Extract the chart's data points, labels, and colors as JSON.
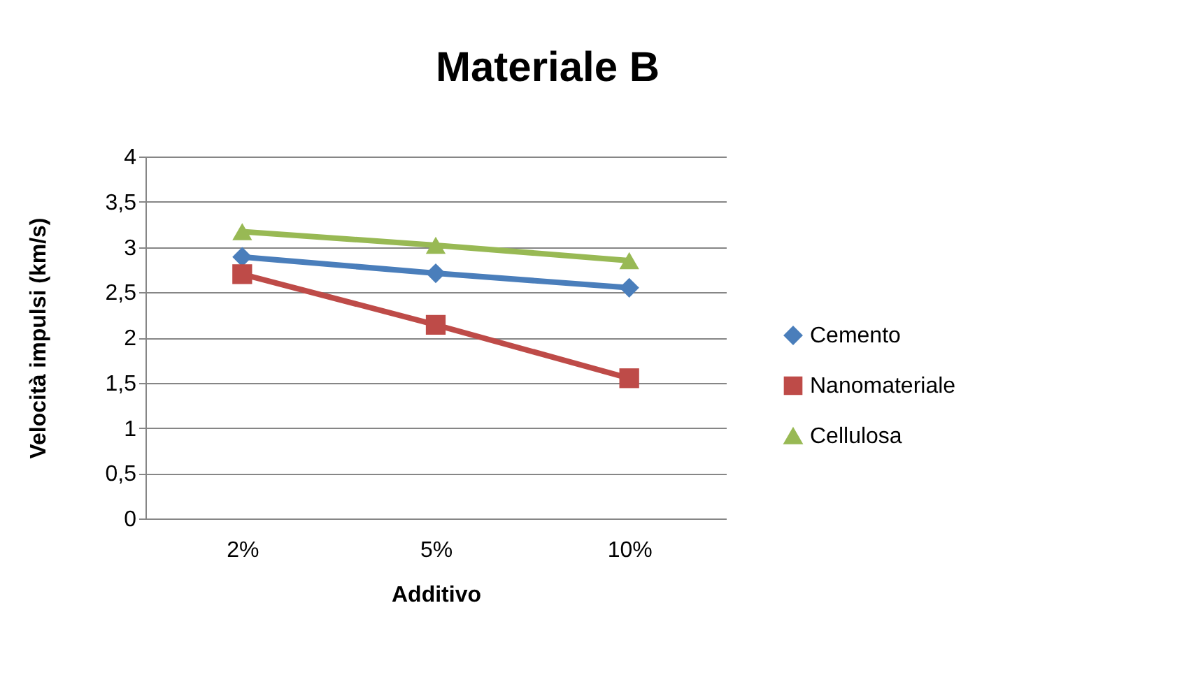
{
  "chart_data": {
    "type": "line",
    "title": "Materiale B",
    "xlabel": "Additivo",
    "ylabel": "Velocità impulsi (km/s)",
    "categories": [
      "2%",
      "5%",
      "10%"
    ],
    "series": [
      {
        "name": "Cemento",
        "color": "#4a7ebb",
        "marker": "diamond",
        "values": [
          2.89,
          2.71,
          2.55
        ]
      },
      {
        "name": "Nanomateriale",
        "color": "#be4b48",
        "marker": "square",
        "values": [
          2.7,
          2.14,
          1.55
        ]
      },
      {
        "name": "Cellulosa",
        "color": "#98b954",
        "marker": "triangle",
        "values": [
          3.17,
          3.02,
          2.85
        ]
      }
    ],
    "ylim": [
      0,
      4
    ],
    "yticks": [
      0,
      {
        "value": 0.5,
        "label": "0,5"
      },
      1,
      {
        "value": 1.5,
        "label": "1,5"
      },
      2,
      {
        "value": 2.5,
        "label": "2,5"
      },
      3,
      {
        "value": 3.5,
        "label": "3,5"
      },
      4
    ],
    "grid": "y",
    "legend": "right",
    "line_style": "solid"
  }
}
